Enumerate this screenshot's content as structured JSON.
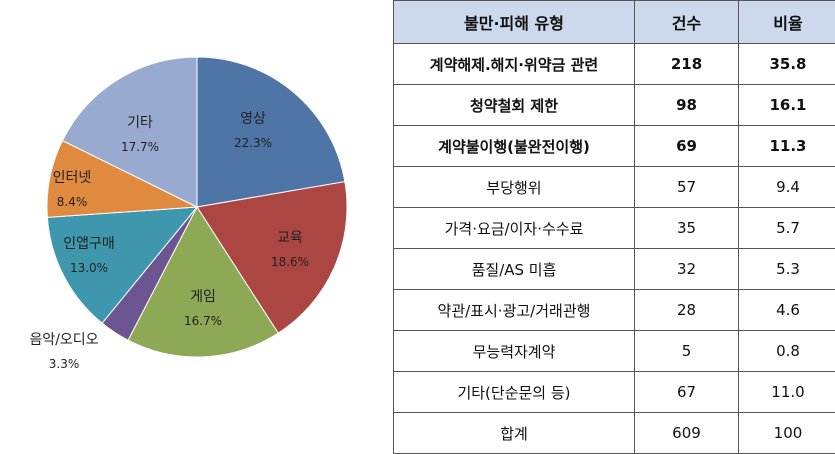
{
  "chart_data": [
    {
      "type": "pie",
      "slices": [
        {
          "label": "영상",
          "value": 22.3,
          "value_label": "22.3%",
          "color": "#4f74a6"
        },
        {
          "label": "교육",
          "value": 18.6,
          "value_label": "18.6%",
          "color": "#ac4643"
        },
        {
          "label": "게임",
          "value": 16.7,
          "value_label": "16.7%",
          "color": "#8ea955"
        },
        {
          "label": "음악/오디오",
          "value": 3.3,
          "value_label": "3.3%",
          "color": "#6c5591"
        },
        {
          "label": "인앱구매",
          "value": 13.0,
          "value_label": "13.0%",
          "color": "#3f97ae"
        },
        {
          "label": "인터넷",
          "value": 8.4,
          "value_label": "8.4%",
          "color": "#e08a3f"
        },
        {
          "label": "기타",
          "value": 17.7,
          "value_label": "17.7%",
          "color": "#98aad0"
        }
      ]
    },
    {
      "type": "table",
      "columns": [
        "불만·피해 유형",
        "건수",
        "비율"
      ],
      "rows": [
        {
          "type": "계약해제.해지·위약금 관련",
          "count": "218",
          "ratio": "35.8",
          "bold": true
        },
        {
          "type": "청약철회 제한",
          "count": "98",
          "ratio": "16.1",
          "bold": true
        },
        {
          "type": "계약불이행(불완전이행)",
          "count": "69",
          "ratio": "11.3",
          "bold": true
        },
        {
          "type": "부당행위",
          "count": "57",
          "ratio": "9.4",
          "bold": false
        },
        {
          "type": "가격·요금/이자·수수료",
          "count": "35",
          "ratio": "5.7",
          "bold": false
        },
        {
          "type": "품질/AS 미흡",
          "count": "32",
          "ratio": "5.3",
          "bold": false
        },
        {
          "type": "약관/표시·광고/거래관행",
          "count": "28",
          "ratio": "4.6",
          "bold": false
        },
        {
          "type": "무능력자계약",
          "count": "5",
          "ratio": "0.8",
          "bold": false
        },
        {
          "type": "기타(단순문의 등)",
          "count": "67",
          "ratio": "11.0",
          "bold": false
        },
        {
          "type": "합계",
          "count": "609",
          "ratio": "100",
          "bold": false
        }
      ]
    }
  ]
}
